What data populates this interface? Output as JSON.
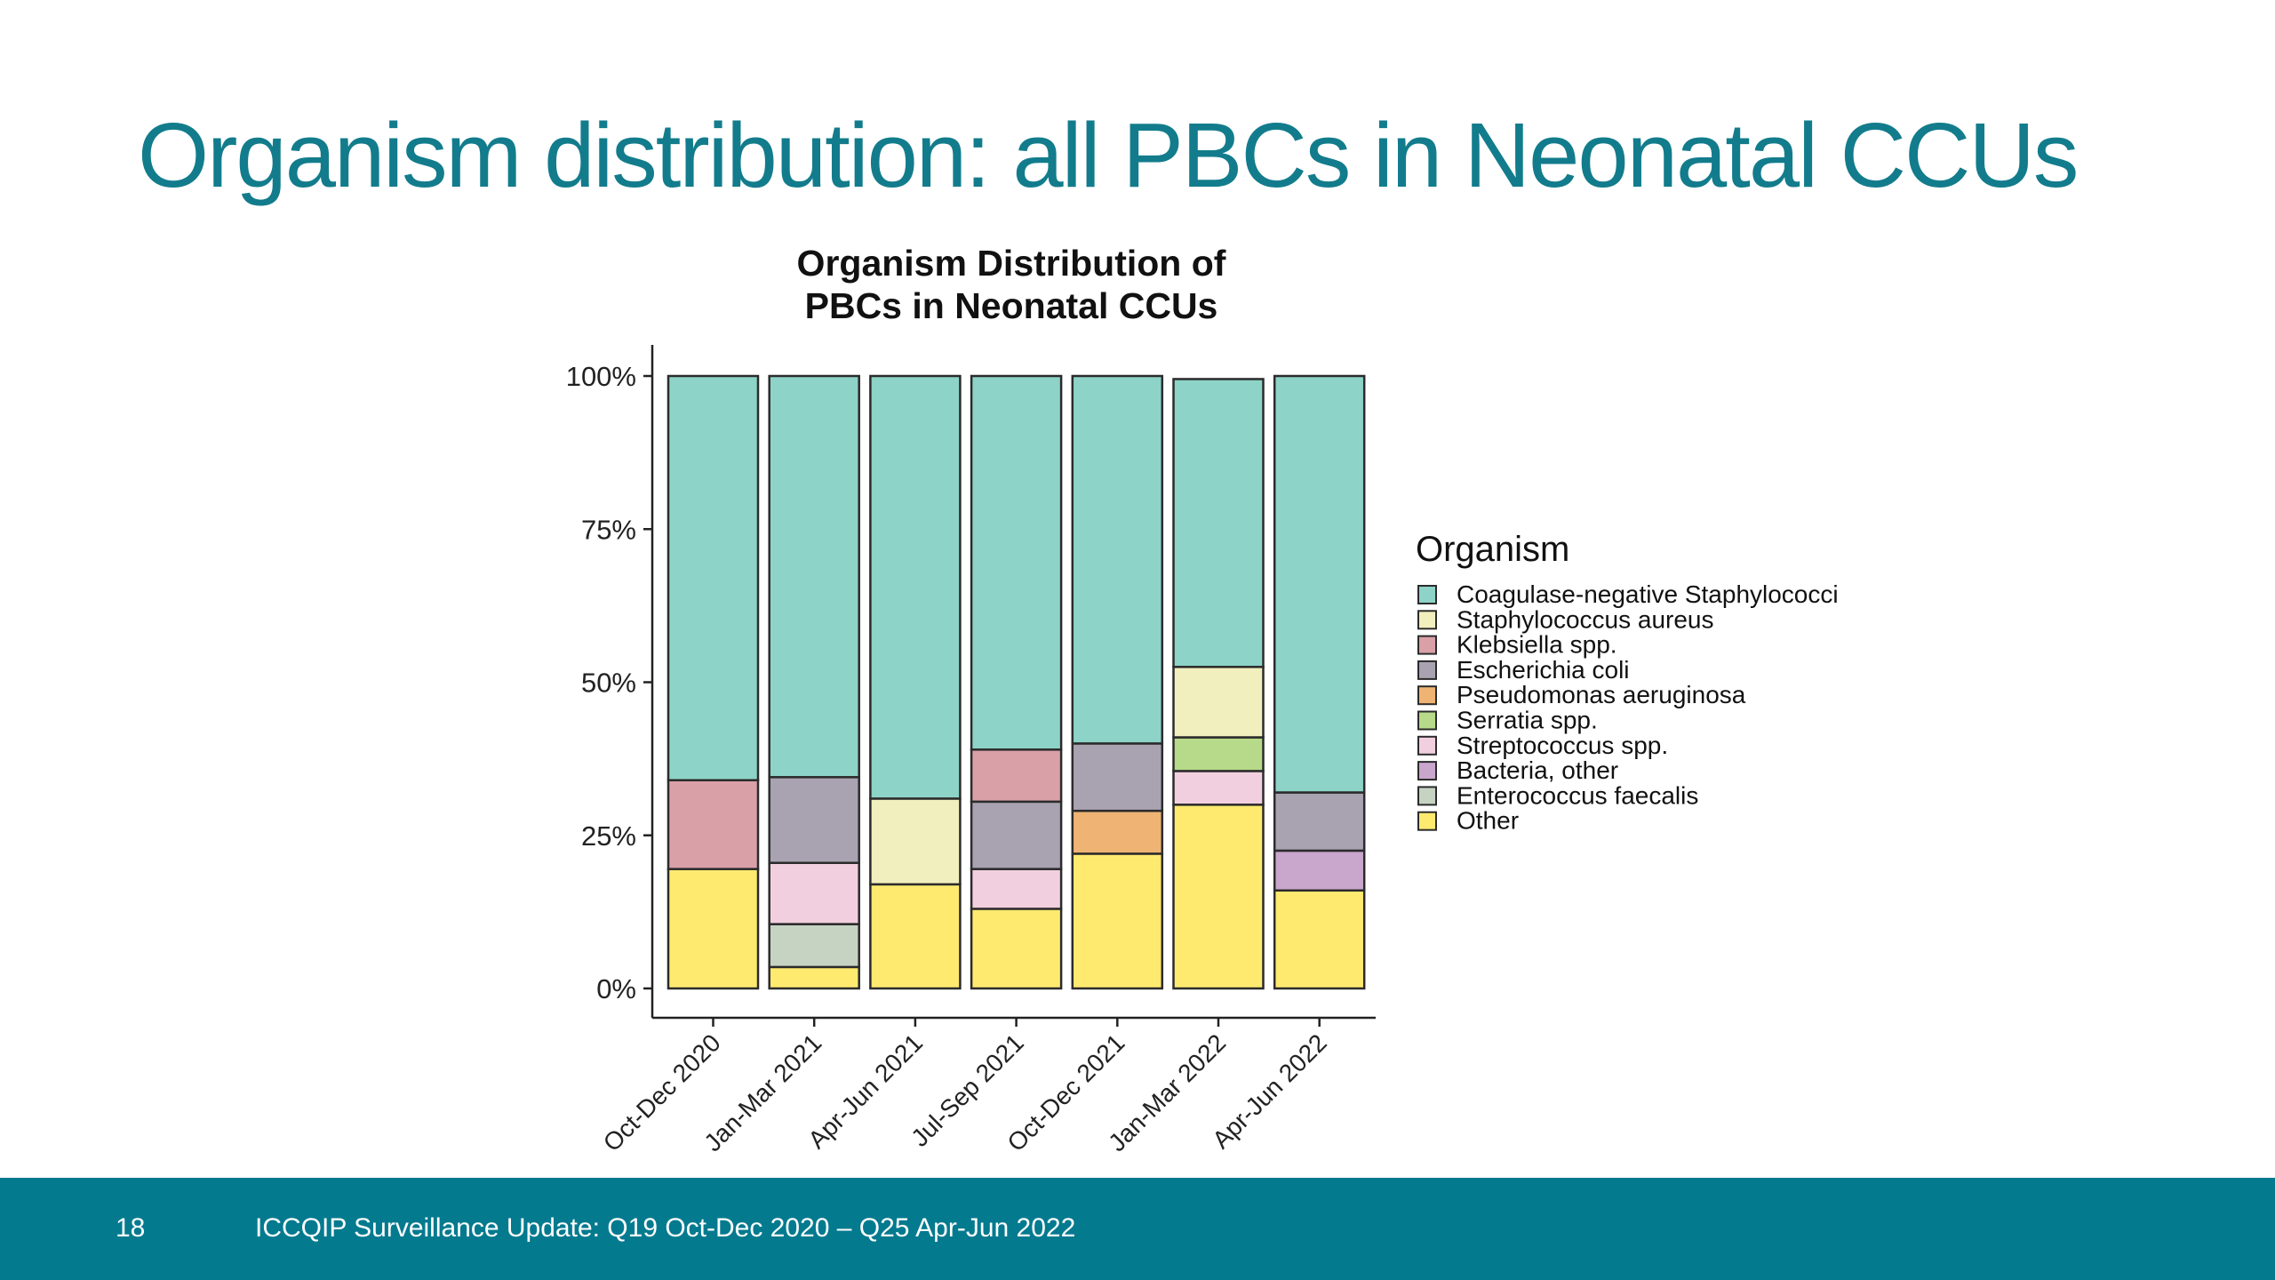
{
  "slide": {
    "title": "Organism distribution: all PBCs in Neonatal CCUs"
  },
  "footer": {
    "page_number": "18",
    "text": "ICCQIP Surveillance Update: Q19 Oct-Dec 2020 – Q25 Apr-Jun 2022",
    "background_color": "#047a8f"
  },
  "chart_data": {
    "type": "bar",
    "stacked": true,
    "title_lines": [
      "Organism Distribution of",
      "PBCs in Neonatal CCUs"
    ],
    "xlabel": "",
    "ylabel": "",
    "ylim": [
      0,
      100
    ],
    "y_ticks": [
      {
        "value": 0,
        "label": "0%"
      },
      {
        "value": 25,
        "label": "25%"
      },
      {
        "value": 50,
        "label": "50%"
      },
      {
        "value": 75,
        "label": "75%"
      },
      {
        "value": 100,
        "label": "100%"
      }
    ],
    "categories": [
      "Oct-Dec 2020",
      "Jan-Mar 2021",
      "Apr-Jun 2021",
      "Jul-Sep 2021",
      "Oct-Dec 2021",
      "Jan-Mar 2022",
      "Apr-Jun 2022"
    ],
    "legend": {
      "title": "Organism",
      "placement": "right"
    },
    "series": [
      {
        "name": "Coagulase-negative Staphylococci",
        "color": "#8dd3c7",
        "values": [
          66,
          65.5,
          69,
          61,
          60,
          47,
          68
        ]
      },
      {
        "name": "Staphylococcus aureus",
        "color": "#f2efbe",
        "values": [
          0,
          0,
          14,
          0,
          0,
          11.5,
          0
        ]
      },
      {
        "name": "Klebsiella spp.",
        "color": "#d9a0a8",
        "values": [
          14.5,
          0,
          0,
          8.5,
          0,
          0,
          0
        ]
      },
      {
        "name": "Escherichia coli",
        "color": "#a9a2b0",
        "values": [
          0,
          14,
          0,
          11,
          11,
          0,
          9.5
        ]
      },
      {
        "name": "Pseudomonas aeruginosa",
        "color": "#efb474",
        "values": [
          0,
          0,
          0,
          0,
          7,
          0,
          0
        ]
      },
      {
        "name": "Serratia spp.",
        "color": "#b7d98a",
        "values": [
          0,
          0,
          0,
          0,
          0,
          5.5,
          0
        ]
      },
      {
        "name": "Streptococcus spp.",
        "color": "#f2cfdf",
        "values": [
          0,
          10,
          0,
          6.5,
          0,
          5.5,
          0
        ]
      },
      {
        "name": "Bacteria, other",
        "color": "#c9a6cc",
        "values": [
          0,
          0,
          0,
          0,
          0,
          0,
          6.5
        ]
      },
      {
        "name": "Enterococcus faecalis",
        "color": "#c6d3c3",
        "values": [
          0,
          7,
          0,
          0,
          0,
          0,
          0
        ]
      },
      {
        "name": "Other",
        "color": "#ffea70",
        "values": [
          19.5,
          3.5,
          17,
          13,
          22,
          30,
          16
        ]
      }
    ],
    "grid": false
  }
}
